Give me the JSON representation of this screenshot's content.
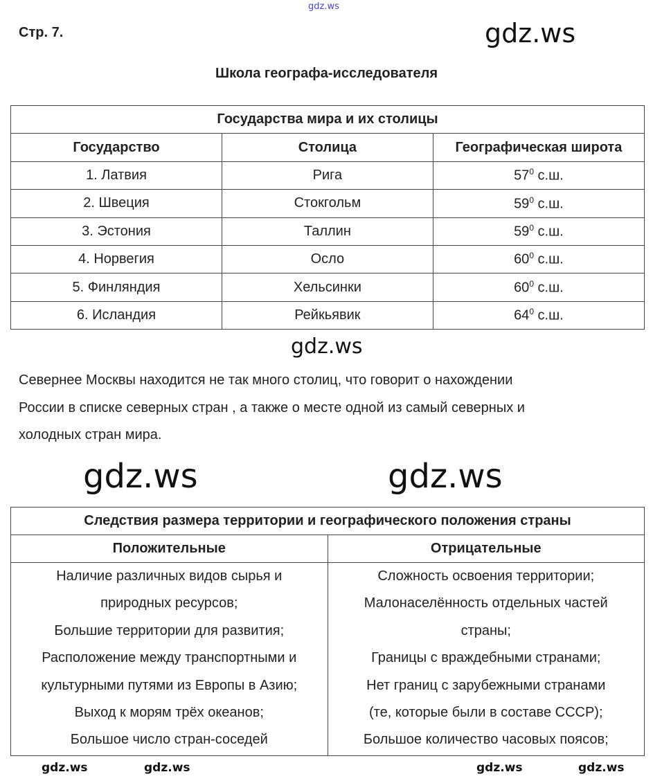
{
  "watermark": "gdz.ws",
  "page_label": "Стр. 7.",
  "title": "Школа географа-исследователя",
  "table1": {
    "caption": "Государства мира и их столицы",
    "headers": [
      "Государство",
      "Столица",
      "Географическая широта"
    ],
    "rows": [
      {
        "country": "1. Латвия",
        "capital": "Рига",
        "lat": "57",
        "deg": "0",
        "suffix": " с.ш."
      },
      {
        "country": "2. Швеция",
        "capital": "Стокгольм",
        "lat": "59",
        "deg": "0",
        "suffix": " с.ш."
      },
      {
        "country": "3. Эстония",
        "capital": "Таллин",
        "lat": "59",
        "deg": "0",
        "suffix": " с.ш."
      },
      {
        "country": "4. Норвегия",
        "capital": "Осло",
        "lat": "60",
        "deg": "0",
        "suffix": " с.ш."
      },
      {
        "country": "5. Финляндия",
        "capital": "Хельсинки",
        "lat": "60",
        "deg": "0",
        "suffix": " с.ш."
      },
      {
        "country": "6. Исландия",
        "capital": "Рейкьявик",
        "lat": "64",
        "deg": "0",
        "suffix": " с.ш."
      }
    ]
  },
  "paragraph": [
    "Севернее Москвы находится не так много столиц, что говорит о нахождении",
    "России в списке северных стран , а также о месте одной из самый северных и",
    "холодных стран мира."
  ],
  "table2": {
    "caption": "Следствия размера территории и географического положения страны",
    "headers": [
      "Положительные",
      "Отрицательные"
    ],
    "positive": [
      "Наличие различных видов сырья и",
      "природных ресурсов;",
      "Большие территории для развития;",
      "Расположение между транспортными и",
      "культурными путями из Европы в Азию;",
      "Выход к морям трёх океанов;",
      "Большое число стран-соседей"
    ],
    "negative": [
      "Сложность освоения территории;",
      "Малонаселённость отдельных частей",
      "страны;",
      "Границы с враждебными странами;",
      "Нет границ с зарубежными странами",
      "(те, которые были в составе СССР);",
      "Большое количество часовых поясов;"
    ]
  }
}
